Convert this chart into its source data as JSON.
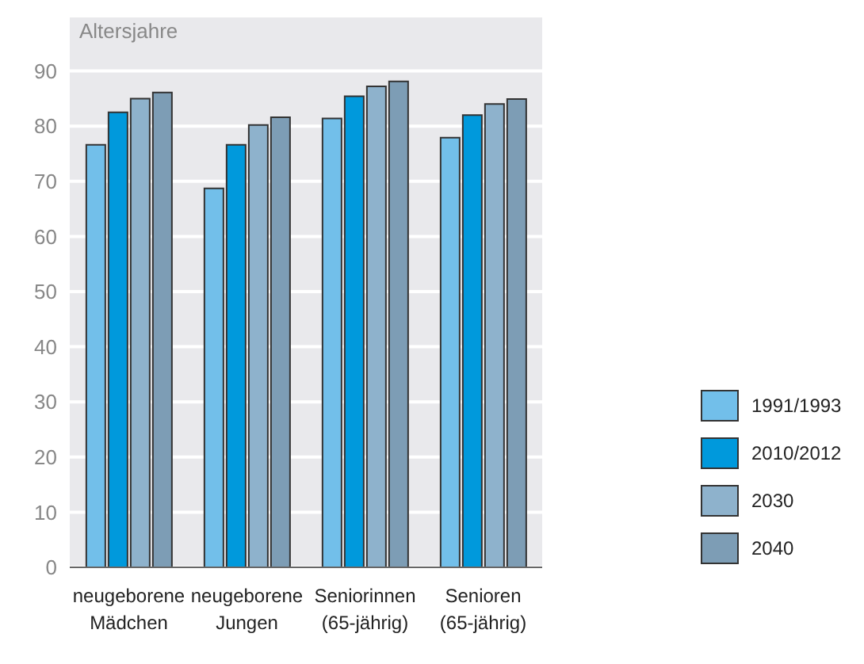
{
  "chart_data": {
    "type": "bar",
    "ylabel": "Altersjahre",
    "categories": [
      "neugeborene Mädchen",
      "neugeborene Jungen",
      "Seniorinnen (65-jährig)",
      "Senioren (65-jährig)"
    ],
    "series": [
      {
        "name": "1991/1993",
        "color": "#72bfea",
        "values": [
          76.6,
          68.7,
          81.4,
          77.9
        ]
      },
      {
        "name": "2010/2012",
        "color": "#0099dc",
        "values": [
          82.5,
          76.6,
          85.4,
          82.0
        ]
      },
      {
        "name": "2030",
        "color": "#8eb2cc",
        "values": [
          85.0,
          80.2,
          87.2,
          84.0
        ]
      },
      {
        "name": "2040",
        "color": "#7d9db5",
        "values": [
          86.1,
          81.6,
          88.1,
          84.9
        ]
      }
    ],
    "ylim": [
      0,
      100
    ],
    "yticks": [
      0,
      10,
      20,
      30,
      40,
      50,
      60,
      70,
      80,
      90
    ],
    "grid": "y",
    "legend": "bottom right"
  }
}
